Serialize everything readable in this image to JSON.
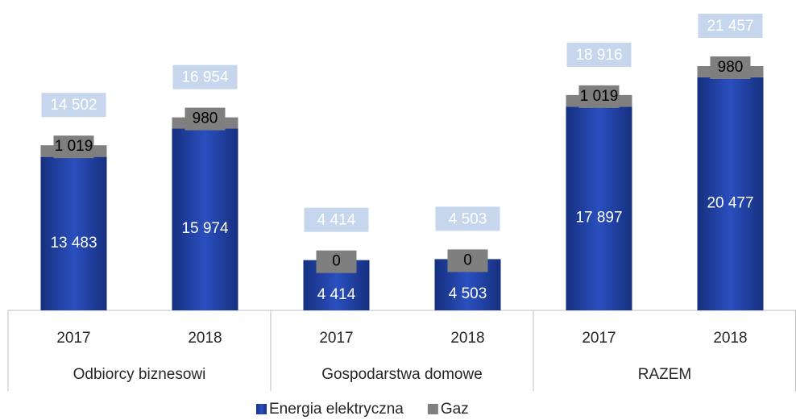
{
  "chart_data": {
    "type": "stacked_bar",
    "categories": [
      "2017",
      "2018",
      "2017",
      "2018",
      "2017",
      "2018"
    ],
    "groups": [
      "Odbiorcy biznesowi",
      "Gospodarstwa domowe",
      "RAZEM"
    ],
    "series": [
      {
        "name": "Energia elektryczna",
        "color": "#1d3c9e",
        "values": [
          13483,
          15974,
          4414,
          4503,
          17897,
          20477
        ],
        "value_labels": [
          "13 483",
          "15 974",
          "4 414",
          "4 503",
          "17 897",
          "20 477"
        ]
      },
      {
        "name": "Gaz",
        "color": "#808080",
        "values": [
          1019,
          980,
          0,
          0,
          1019,
          980
        ],
        "value_labels": [
          "1 019",
          "980",
          "0",
          "0",
          "1 019",
          "980"
        ]
      }
    ],
    "totals": {
      "values": [
        14502,
        16954,
        4414,
        4503,
        18916,
        21457
      ],
      "value_labels": [
        "14 502",
        "16 954",
        "4 414",
        "4 503",
        "18 916",
        "21 457"
      ]
    }
  }
}
